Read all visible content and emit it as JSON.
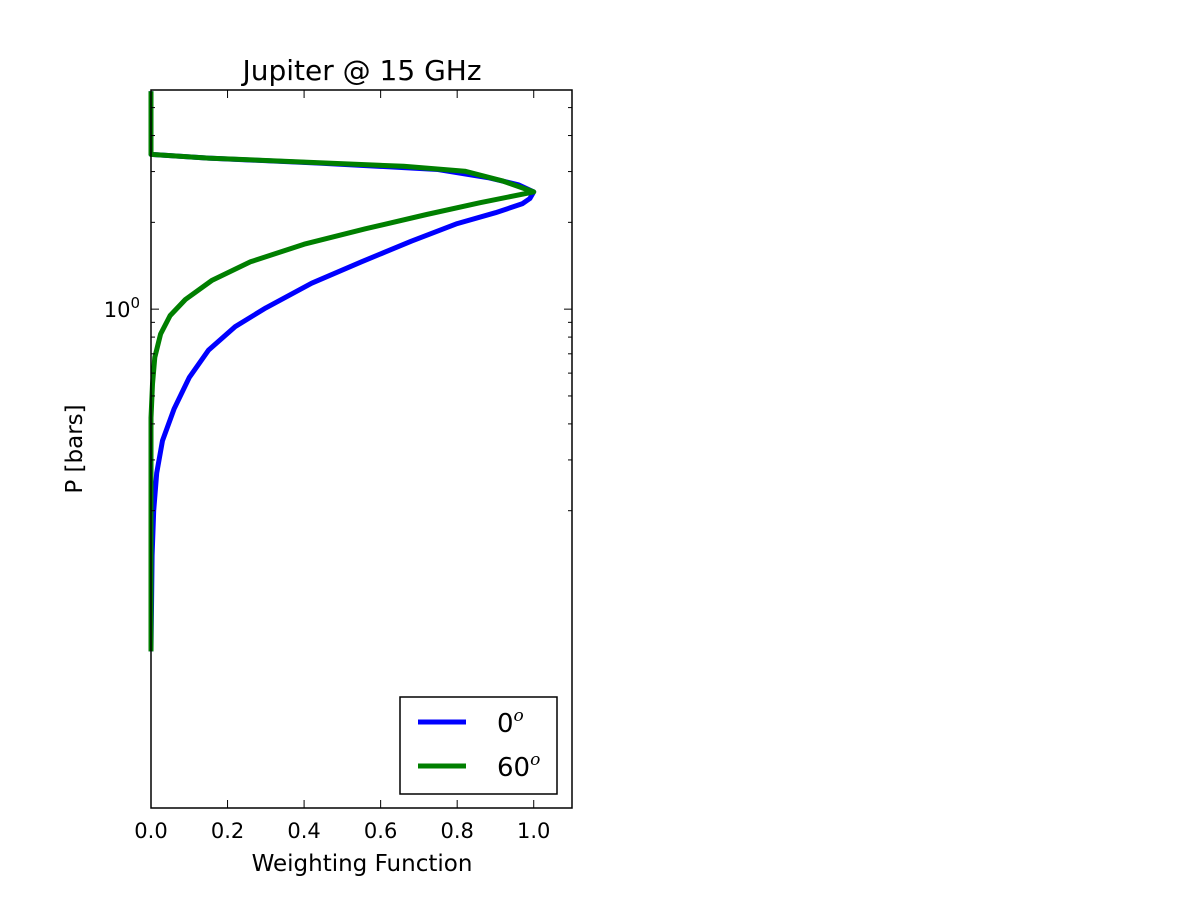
{
  "chart_data": {
    "type": "line",
    "title": "Jupiter @ 15 GHz",
    "xlabel": "Weighting Function",
    "ylabel": "P [bars]",
    "xlim": [
      0.0,
      1.1
    ],
    "ylim_log10": [
      -1.73,
      0.76
    ],
    "yscale": "log",
    "y_inverted": true,
    "xticks": [
      {
        "value": 0.0,
        "label": "0.0"
      },
      {
        "value": 0.2,
        "label": "0.2"
      },
      {
        "value": 0.4,
        "label": "0.4"
      },
      {
        "value": 0.6,
        "label": "0.6"
      },
      {
        "value": 0.8,
        "label": "0.8"
      },
      {
        "value": 1.0,
        "label": "1.0"
      }
    ],
    "ymajor_ticks": [
      {
        "value": 1.0,
        "base": "10",
        "exponent": "0"
      }
    ],
    "yminor_ticks": [
      0.2,
      0.3,
      0.4,
      0.5,
      0.6,
      0.7,
      0.8,
      0.9,
      2,
      3,
      4,
      5
    ],
    "legend_position": "lower-right",
    "grid": false,
    "series": [
      {
        "name": "0",
        "name_sup": "o",
        "color": "#0000ff",
        "points": [
          [
            0.0,
            5.7
          ],
          [
            0.0,
            3.44
          ],
          [
            0.15,
            3.34
          ],
          [
            0.44,
            3.21
          ],
          [
            0.75,
            3.05
          ],
          [
            0.88,
            2.86
          ],
          [
            0.96,
            2.7
          ],
          [
            1.0,
            2.55
          ],
          [
            0.99,
            2.42
          ],
          [
            0.97,
            2.32
          ],
          [
            0.9,
            2.16
          ],
          [
            0.8,
            1.98
          ],
          [
            0.68,
            1.72
          ],
          [
            0.55,
            1.46
          ],
          [
            0.42,
            1.23
          ],
          [
            0.3,
            1.01
          ],
          [
            0.22,
            0.87
          ],
          [
            0.15,
            0.72
          ],
          [
            0.1,
            0.58
          ],
          [
            0.06,
            0.45
          ],
          [
            0.03,
            0.35
          ],
          [
            0.015,
            0.27
          ],
          [
            0.007,
            0.2
          ],
          [
            0.003,
            0.14
          ],
          [
            0.0,
            0.065
          ]
        ]
      },
      {
        "name": "60",
        "name_sup": "o",
        "color": "#007f00",
        "points": [
          [
            0.0,
            5.7
          ],
          [
            0.0,
            3.44
          ],
          [
            0.15,
            3.34
          ],
          [
            0.44,
            3.22
          ],
          [
            0.66,
            3.13
          ],
          [
            0.82,
            3.01
          ],
          [
            0.92,
            2.78
          ],
          [
            1.0,
            2.55
          ],
          [
            0.86,
            2.34
          ],
          [
            0.72,
            2.13
          ],
          [
            0.56,
            1.9
          ],
          [
            0.4,
            1.68
          ],
          [
            0.26,
            1.46
          ],
          [
            0.16,
            1.26
          ],
          [
            0.09,
            1.08
          ],
          [
            0.05,
            0.95
          ],
          [
            0.025,
            0.82
          ],
          [
            0.01,
            0.68
          ],
          [
            0.004,
            0.55
          ],
          [
            0.0,
            0.42
          ],
          [
            0.0,
            0.065
          ]
        ]
      }
    ]
  }
}
